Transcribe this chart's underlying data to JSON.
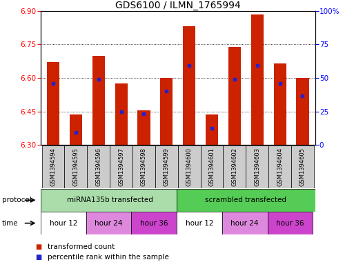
{
  "title": "GDS6100 / ILMN_1765994",
  "samples": [
    "GSM1394594",
    "GSM1394595",
    "GSM1394596",
    "GSM1394597",
    "GSM1394598",
    "GSM1394599",
    "GSM1394600",
    "GSM1394601",
    "GSM1394602",
    "GSM1394603",
    "GSM1394604",
    "GSM1394605"
  ],
  "bar_values": [
    6.67,
    6.435,
    6.7,
    6.575,
    6.455,
    6.6,
    6.83,
    6.435,
    6.74,
    6.885,
    6.665,
    6.6
  ],
  "blue_marker_values": [
    6.575,
    6.355,
    6.595,
    6.45,
    6.44,
    6.54,
    6.655,
    6.375,
    6.595,
    6.655,
    6.575,
    6.52
  ],
  "ymin": 6.3,
  "ymax": 6.9,
  "yticks_left": [
    6.3,
    6.45,
    6.6,
    6.75,
    6.9
  ],
  "yticks_right": [
    0,
    25,
    50,
    75,
    100
  ],
  "bar_color": "#cc2200",
  "blue_marker_color": "#2222cc",
  "bar_bottom": 6.3,
  "bar_width": 0.55,
  "title_fontsize": 10,
  "sample_label_fontsize": 6,
  "row_fontsize": 7.5,
  "legend_fontsize": 7.5,
  "background_color": "#ffffff",
  "grid_color": "#000000",
  "sample_box_color": "#cccccc",
  "protocol1_color": "#aaddaa",
  "protocol2_color": "#55cc55",
  "time_white_color": "#ffffff",
  "time_pink_color": "#dd88dd",
  "time_purple_color": "#cc44cc",
  "legend_items": [
    {
      "label": "transformed count",
      "color": "#cc2200"
    },
    {
      "label": "percentile rank within the sample",
      "color": "#2222cc"
    }
  ]
}
